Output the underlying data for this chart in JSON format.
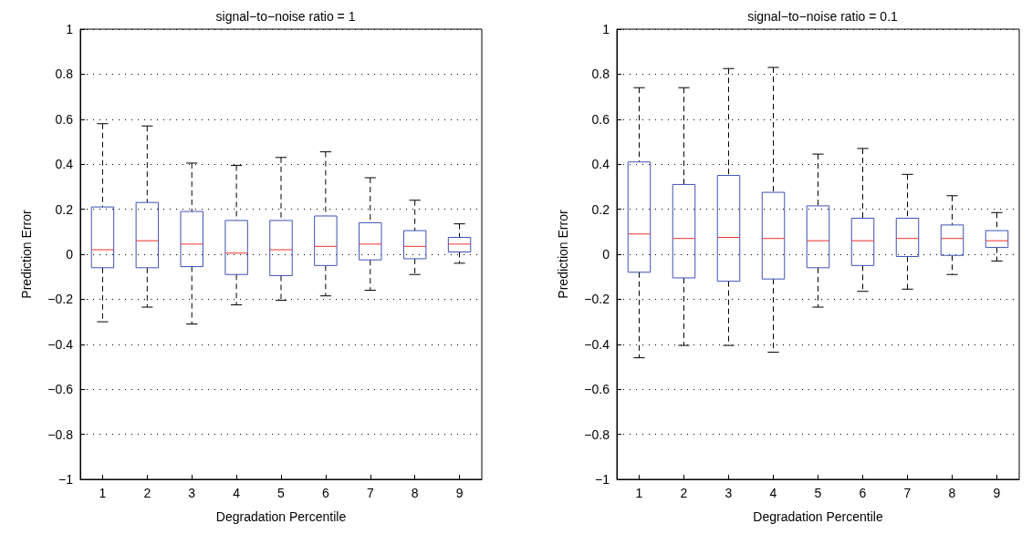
{
  "chart_data": [
    {
      "type": "box",
      "title": "signal−to−noise ratio = 1",
      "xlabel": "Degradation Percentile",
      "ylabel": "Prediction Error",
      "categories": [
        "1",
        "2",
        "3",
        "4",
        "5",
        "6",
        "7",
        "8",
        "9"
      ],
      "ylim": [
        -1,
        1
      ],
      "yticks": [
        -1,
        -0.8,
        -0.6,
        -0.4,
        -0.2,
        0,
        0.2,
        0.4,
        0.6,
        0.8,
        1
      ],
      "grid": "y",
      "series": [
        {
          "color": "#3f51b5",
          "boxes": [
            {
              "low": -0.3,
              "q1": -0.06,
              "median": 0.02,
              "q3": 0.21,
              "high": 0.58
            },
            {
              "low": -0.235,
              "q1": -0.06,
              "median": 0.06,
              "q3": 0.23,
              "high": 0.57
            },
            {
              "low": -0.31,
              "q1": -0.055,
              "median": 0.045,
              "q3": 0.19,
              "high": 0.405
            },
            {
              "low": -0.225,
              "q1": -0.09,
              "median": 0.005,
              "q3": 0.15,
              "high": 0.395
            },
            {
              "low": -0.205,
              "q1": -0.095,
              "median": 0.02,
              "q3": 0.15,
              "high": 0.43
            },
            {
              "low": -0.185,
              "q1": -0.05,
              "median": 0.035,
              "q3": 0.17,
              "high": 0.455
            },
            {
              "low": -0.16,
              "q1": -0.025,
              "median": 0.045,
              "q3": 0.14,
              "high": 0.34
            },
            {
              "low": -0.09,
              "q1": -0.02,
              "median": 0.035,
              "q3": 0.105,
              "high": 0.24
            },
            {
              "low": -0.04,
              "q1": 0.01,
              "median": 0.045,
              "q3": 0.075,
              "high": 0.135
            }
          ]
        }
      ]
    },
    {
      "type": "box",
      "title": "signal−to−noise ratio = 0.1",
      "xlabel": "Degradation Percentile",
      "ylabel": "Prediction Error",
      "categories": [
        "1",
        "2",
        "3",
        "4",
        "5",
        "6",
        "7",
        "8",
        "9"
      ],
      "ylim": [
        -1,
        1
      ],
      "yticks": [
        -1,
        -0.8,
        -0.6,
        -0.4,
        -0.2,
        0,
        0.2,
        0.4,
        0.6,
        0.8,
        1
      ],
      "grid": "y",
      "series": [
        {
          "color": "#3f51b5",
          "boxes": [
            {
              "low": -0.46,
              "q1": -0.08,
              "median": 0.09,
              "q3": 0.41,
              "high": 0.74
            },
            {
              "low": -0.405,
              "q1": -0.105,
              "median": 0.07,
              "q3": 0.31,
              "high": 0.74
            },
            {
              "low": -0.405,
              "q1": -0.12,
              "median": 0.075,
              "q3": 0.35,
              "high": 0.825
            },
            {
              "low": -0.435,
              "q1": -0.11,
              "median": 0.07,
              "q3": 0.275,
              "high": 0.83
            },
            {
              "low": -0.235,
              "q1": -0.06,
              "median": 0.06,
              "q3": 0.215,
              "high": 0.445
            },
            {
              "low": -0.165,
              "q1": -0.05,
              "median": 0.06,
              "q3": 0.16,
              "high": 0.47
            },
            {
              "low": -0.155,
              "q1": -0.01,
              "median": 0.07,
              "q3": 0.16,
              "high": 0.355
            },
            {
              "low": -0.09,
              "q1": -0.005,
              "median": 0.07,
              "q3": 0.13,
              "high": 0.26
            },
            {
              "low": -0.03,
              "q1": 0.03,
              "median": 0.06,
              "q3": 0.105,
              "high": 0.185
            }
          ]
        }
      ]
    }
  ]
}
